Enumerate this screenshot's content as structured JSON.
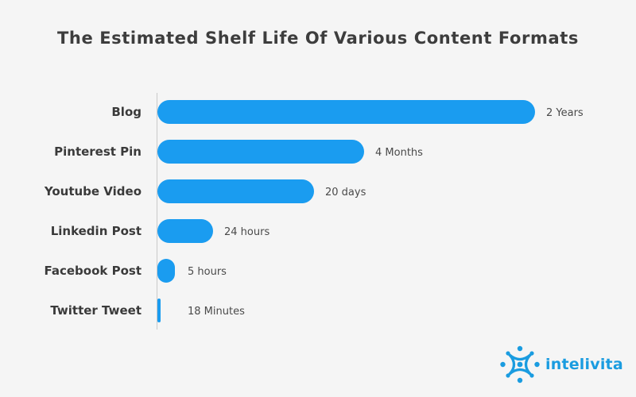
{
  "chart_data": {
    "type": "bar",
    "orientation": "horizontal",
    "title": "The Estimated Shelf Life Of Various Content Formats",
    "categories": [
      "Blog",
      "Pinterest Pin",
      "Youtube Video",
      "Linkedin Post",
      "Facebook Post",
      "Twitter Tweet"
    ],
    "values": [
      475,
      260,
      197,
      70,
      22,
      4
    ],
    "value_labels": [
      "2 Years",
      "4 Months",
      "20 days",
      "24 hours",
      "5 hours",
      "18 Minutes"
    ],
    "xlabel": "",
    "ylabel": "",
    "xlim": [
      0,
      475
    ],
    "grid": false,
    "bar_color": "#1a9cf0"
  },
  "brand": {
    "name": "intelivita",
    "logo_icon": "intelivita-logo-icon",
    "color": "#1a9ce0"
  }
}
